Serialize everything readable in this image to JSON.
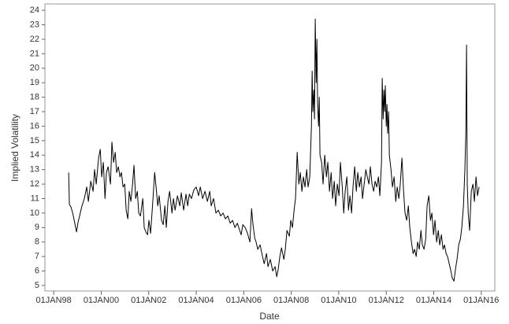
{
  "chart_data": {
    "type": "line",
    "x_label": "Date",
    "y_label": "Implied Volatility",
    "color": "#000000",
    "xlim": [
      1997.63,
      2016.57
    ],
    "ylim": [
      4.62,
      24.44
    ],
    "xticks": [
      {
        "value": 1998,
        "label": "01JAN98"
      },
      {
        "value": 2000,
        "label": "01JAN00"
      },
      {
        "value": 2002,
        "label": "01JAN02"
      },
      {
        "value": 2004,
        "label": "01JAN04"
      },
      {
        "value": 2006,
        "label": "01JAN06"
      },
      {
        "value": 2008,
        "label": "01JAN08"
      },
      {
        "value": 2010,
        "label": "01JAN10"
      },
      {
        "value": 2012,
        "label": "01JAN12"
      },
      {
        "value": 2014,
        "label": "01JAN14"
      },
      {
        "value": 2016,
        "label": "01JAN16"
      }
    ],
    "yticks": [
      5,
      6,
      7,
      8,
      9,
      10,
      11,
      12,
      13,
      14,
      15,
      16,
      17,
      18,
      19,
      20,
      21,
      22,
      23,
      24
    ],
    "x": [
      1998.63,
      1998.66,
      1998.73,
      1998.8,
      1998.9,
      1998.96,
      1999.03,
      1999.09,
      1999.19,
      1999.29,
      1999.39,
      1999.46,
      1999.56,
      1999.66,
      1999.72,
      1999.79,
      1999.89,
      1999.96,
      2000.02,
      2000.09,
      2000.16,
      2000.22,
      2000.29,
      2000.39,
      2000.45,
      2000.52,
      2000.59,
      2000.65,
      2000.72,
      2000.79,
      2000.85,
      2000.92,
      2000.99,
      2001.05,
      2001.12,
      2001.18,
      2001.25,
      2001.32,
      2001.38,
      2001.45,
      2001.52,
      2001.58,
      2001.65,
      2001.75,
      2001.81,
      2001.88,
      2001.95,
      2002.01,
      2002.08,
      2002.18,
      2002.25,
      2002.31,
      2002.38,
      2002.44,
      2002.54,
      2002.61,
      2002.68,
      2002.74,
      2002.81,
      2002.88,
      2002.98,
      2003.04,
      2003.11,
      2003.21,
      2003.31,
      2003.37,
      2003.47,
      2003.57,
      2003.64,
      2003.71,
      2003.8,
      2003.9,
      2004.0,
      2004.1,
      2004.17,
      2004.27,
      2004.37,
      2004.47,
      2004.57,
      2004.63,
      2004.73,
      2004.83,
      2004.93,
      2005.03,
      2005.13,
      2005.23,
      2005.33,
      2005.43,
      2005.53,
      2005.63,
      2005.73,
      2005.83,
      2005.89,
      2005.96,
      2006.06,
      2006.16,
      2006.26,
      2006.33,
      2006.39,
      2006.46,
      2006.52,
      2006.59,
      2006.69,
      2006.79,
      2006.86,
      2006.96,
      2007.02,
      2007.12,
      2007.22,
      2007.32,
      2007.39,
      2007.45,
      2007.52,
      2007.59,
      2007.69,
      2007.75,
      2007.82,
      2007.92,
      2007.98,
      2008.05,
      2008.12,
      2008.18,
      2008.25,
      2008.32,
      2008.38,
      2008.45,
      2008.51,
      2008.58,
      2008.65,
      2008.71,
      2008.78,
      2008.85,
      2008.88,
      2008.91,
      2008.95,
      2008.98,
      2009.01,
      2009.05,
      2009.08,
      2009.11,
      2009.15,
      2009.18,
      2009.21,
      2009.28,
      2009.34,
      2009.41,
      2009.48,
      2009.54,
      2009.61,
      2009.68,
      2009.74,
      2009.81,
      2009.87,
      2009.94,
      2010.01,
      2010.07,
      2010.14,
      2010.21,
      2010.27,
      2010.34,
      2010.41,
      2010.47,
      2010.54,
      2010.6,
      2010.67,
      2010.74,
      2010.8,
      2010.87,
      2010.94,
      2011.0,
      2011.07,
      2011.14,
      2011.2,
      2011.27,
      2011.33,
      2011.4,
      2011.47,
      2011.53,
      2011.6,
      2011.67,
      2011.73,
      2011.8,
      2011.83,
      2011.87,
      2011.9,
      2011.93,
      2011.96,
      2012.0,
      2012.03,
      2012.06,
      2012.1,
      2012.13,
      2012.2,
      2012.26,
      2012.33,
      2012.4,
      2012.46,
      2012.53,
      2012.59,
      2012.66,
      2012.73,
      2012.79,
      2012.86,
      2012.93,
      2012.99,
      2013.06,
      2013.13,
      2013.19,
      2013.26,
      2013.32,
      2013.39,
      2013.46,
      2013.52,
      2013.59,
      2013.66,
      2013.72,
      2013.79,
      2013.86,
      2013.92,
      2013.99,
      2014.05,
      2014.12,
      2014.19,
      2014.25,
      2014.32,
      2014.39,
      2014.45,
      2014.52,
      2014.58,
      2014.65,
      2014.72,
      2014.78,
      2014.85,
      2014.92,
      2014.98,
      2015.05,
      2015.12,
      2015.18,
      2015.25,
      2015.31,
      2015.35,
      2015.38,
      2015.41,
      2015.45,
      2015.51,
      2015.58,
      2015.65,
      2015.71,
      2015.78,
      2015.84,
      2015.91
    ],
    "values": [
      12.8,
      10.6,
      10.4,
      10.0,
      9.2,
      8.7,
      9.4,
      9.8,
      10.5,
      11.0,
      11.8,
      10.8,
      12.2,
      11.5,
      13.0,
      12.0,
      13.8,
      14.4,
      12.5,
      13.5,
      11.0,
      12.8,
      13.2,
      12.0,
      14.9,
      13.5,
      14.2,
      12.8,
      13.2,
      12.5,
      12.8,
      11.8,
      12.0,
      10.2,
      9.6,
      11.5,
      10.8,
      12.0,
      13.3,
      11.0,
      11.5,
      10.0,
      9.8,
      11.0,
      9.0,
      8.7,
      8.5,
      9.5,
      8.6,
      11.0,
      12.8,
      11.8,
      10.5,
      11.2,
      9.5,
      9.2,
      10.5,
      9.0,
      10.8,
      11.5,
      10.0,
      11.0,
      10.2,
      11.2,
      10.5,
      11.4,
      10.2,
      11.3,
      10.5,
      11.3,
      11.0,
      11.6,
      11.8,
      11.2,
      11.8,
      11.0,
      11.5,
      10.8,
      11.5,
      10.5,
      11.0,
      10.0,
      10.2,
      9.8,
      10.0,
      9.6,
      9.8,
      9.3,
      9.5,
      9.0,
      9.3,
      8.8,
      8.5,
      9.2,
      9.0,
      8.6,
      8.0,
      10.3,
      9.2,
      8.3,
      8.0,
      7.5,
      7.8,
      7.0,
      6.5,
      7.2,
      6.3,
      6.8,
      6.0,
      6.3,
      5.6,
      6.1,
      7.0,
      7.6,
      6.8,
      7.5,
      8.8,
      8.4,
      9.5,
      9.0,
      10.2,
      11.0,
      14.2,
      12.0,
      12.8,
      11.5,
      12.5,
      11.8,
      13.0,
      11.8,
      12.5,
      16.0,
      19.8,
      17.0,
      18.5,
      16.5,
      23.4,
      19.0,
      22.0,
      17.5,
      16.0,
      18.0,
      14.0,
      13.5,
      12.0,
      14.0,
      12.5,
      13.5,
      11.5,
      12.8,
      11.0,
      12.2,
      10.5,
      12.0,
      11.2,
      13.5,
      12.0,
      10.0,
      11.5,
      12.5,
      10.2,
      11.2,
      10.0,
      11.8,
      13.2,
      11.5,
      12.8,
      11.8,
      12.5,
      11.0,
      12.0,
      13.0,
      12.5,
      12.0,
      13.2,
      12.0,
      11.5,
      12.2,
      11.8,
      12.5,
      11.2,
      13.5,
      19.3,
      16.5,
      18.5,
      17.0,
      18.8,
      16.0,
      17.5,
      15.5,
      17.0,
      14.0,
      13.0,
      11.8,
      12.5,
      10.8,
      11.8,
      11.0,
      12.0,
      13.8,
      11.5,
      10.0,
      9.5,
      10.5,
      9.0,
      8.0,
      7.2,
      7.5,
      7.0,
      8.0,
      7.5,
      8.8,
      7.8,
      7.5,
      8.2,
      10.5,
      11.2,
      9.5,
      10.0,
      8.5,
      9.5,
      8.0,
      8.8,
      7.8,
      8.5,
      7.5,
      7.8,
      7.2,
      7.0,
      6.5,
      6.0,
      5.5,
      5.3,
      6.2,
      6.8,
      7.8,
      8.2,
      9.0,
      10.5,
      13.0,
      15.5,
      21.6,
      12.0,
      10.0,
      8.8,
      11.5,
      12.0,
      10.8,
      12.5,
      11.2,
      11.8
    ]
  }
}
